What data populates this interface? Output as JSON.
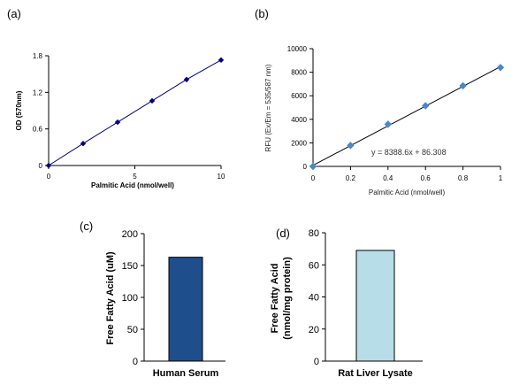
{
  "panels": [
    {
      "id": "a",
      "label": "(a)",
      "chart_data": {
        "type": "line",
        "series": [
          {
            "x": [
              0,
              2,
              4,
              6,
              8,
              10
            ],
            "y": [
              0,
              0.36,
              0.71,
              1.06,
              1.41,
              1.73
            ],
            "color": "#000080",
            "marker": "diamond",
            "line_color": "#000080"
          }
        ],
        "xlim": [
          0,
          10
        ],
        "ylim": [
          0,
          1.8
        ],
        "xticks": [
          0,
          5,
          10
        ],
        "yticks": [
          0,
          0.6,
          1.2,
          1.8
        ],
        "xtick_labels": [
          "0",
          "5",
          "10"
        ],
        "ytick_labels": [
          "0",
          "0.6",
          "1.2",
          "1.8"
        ],
        "xlabel": "Palmitic Acid (nmol/well)",
        "ylabel": "OD (570nm)",
        "grid": false
      }
    },
    {
      "id": "b",
      "label": "(b)",
      "chart_data": {
        "type": "scatter",
        "series": [
          {
            "x": [
              0,
              0.2,
              0.4,
              0.6,
              0.8,
              1.0
            ],
            "y": [
              0,
              1780,
              3580,
              5150,
              6850,
              8400
            ],
            "color": "#4a86c8",
            "marker": "diamond"
          }
        ],
        "trendline": {
          "slope": 8388.6,
          "intercept": 86.308,
          "color": "#000000"
        },
        "annotation": "y = 8388.6x + 86.308",
        "xlim": [
          0,
          1
        ],
        "ylim": [
          0,
          10000
        ],
        "xticks": [
          0,
          0.2,
          0.4,
          0.6,
          0.8,
          1
        ],
        "yticks": [
          0,
          2000,
          4000,
          6000,
          8000,
          10000
        ],
        "xtick_labels": [
          "0",
          "0.2",
          "0.4",
          "0.6",
          "0.8",
          "1"
        ],
        "ytick_labels": [
          "0",
          "2000",
          "4000",
          "6000",
          "8000",
          "10000"
        ],
        "xlabel": "Palmitic Acid (nmol/well)",
        "ylabel": "RFU (Ex/Em = 535/587 nm)",
        "grid": false
      }
    },
    {
      "id": "c",
      "label": "(c)",
      "chart_data": {
        "type": "bar",
        "categories": [
          "Human Serum"
        ],
        "values": [
          163
        ],
        "color": "#1f4e8c",
        "ylim": [
          0,
          200
        ],
        "yticks": [
          0,
          50,
          100,
          150,
          200
        ],
        "ytick_labels": [
          "0",
          "50",
          "100",
          "150",
          "200"
        ],
        "ylabel": "Free Fatty Acid (uM)",
        "xlabel": "",
        "grid": false
      }
    },
    {
      "id": "d",
      "label": "(d)",
      "chart_data": {
        "type": "bar",
        "categories": [
          "Rat Liver Lysate"
        ],
        "values": [
          69
        ],
        "color": "#b7dde8",
        "ylim": [
          0,
          80
        ],
        "yticks": [
          0,
          20,
          40,
          60,
          80
        ],
        "ytick_labels": [
          "0",
          "20",
          "40",
          "60",
          "80"
        ],
        "ylabel": "Free Fatty Acid",
        "ylabel_line2": "(nmol/mg protein)",
        "xlabel": "",
        "grid": false
      }
    }
  ]
}
